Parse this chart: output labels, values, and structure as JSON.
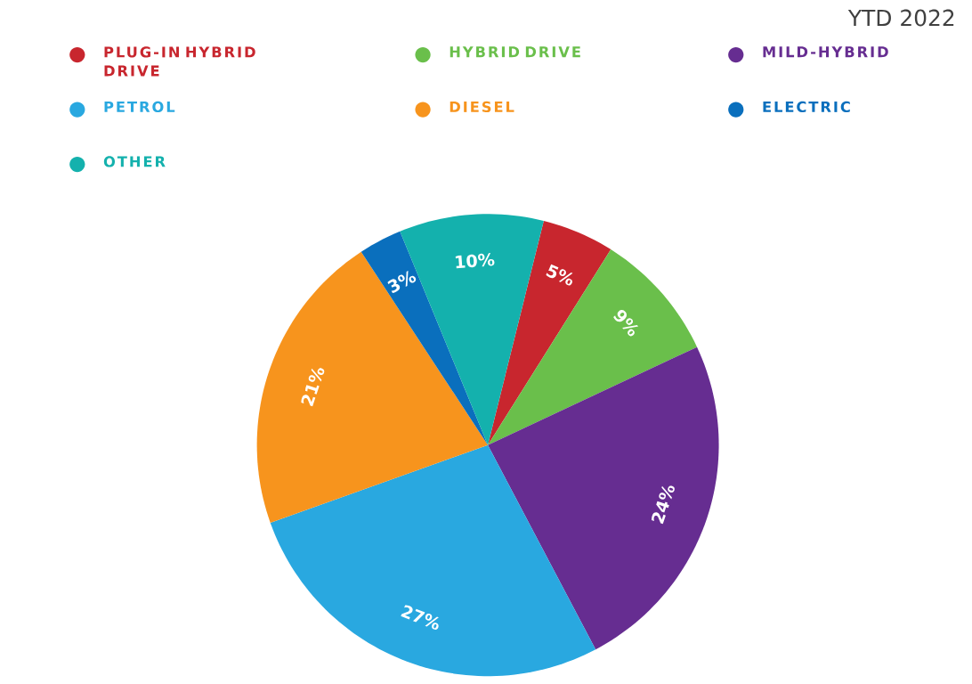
{
  "chart_data": {
    "type": "pie",
    "subtitle": "YTD 2022",
    "categories": [
      "PLUG-IN HYBRID DRIVE",
      "HYBRID DRIVE",
      "MILD-HYBRID",
      "PETROL",
      "DIESEL",
      "ELECTRIC",
      "OTHER"
    ],
    "values": [
      5,
      9,
      24,
      27,
      21,
      3,
      10
    ],
    "colors": [
      "#c8262e",
      "#6abf4b",
      "#662d91",
      "#29a8e0",
      "#f7941d",
      "#0a6fbd",
      "#14b1ad"
    ],
    "value_labels": [
      "5%",
      "9%",
      "24%",
      "27%",
      "21%",
      "3%",
      "10%"
    ],
    "legend": "top"
  }
}
